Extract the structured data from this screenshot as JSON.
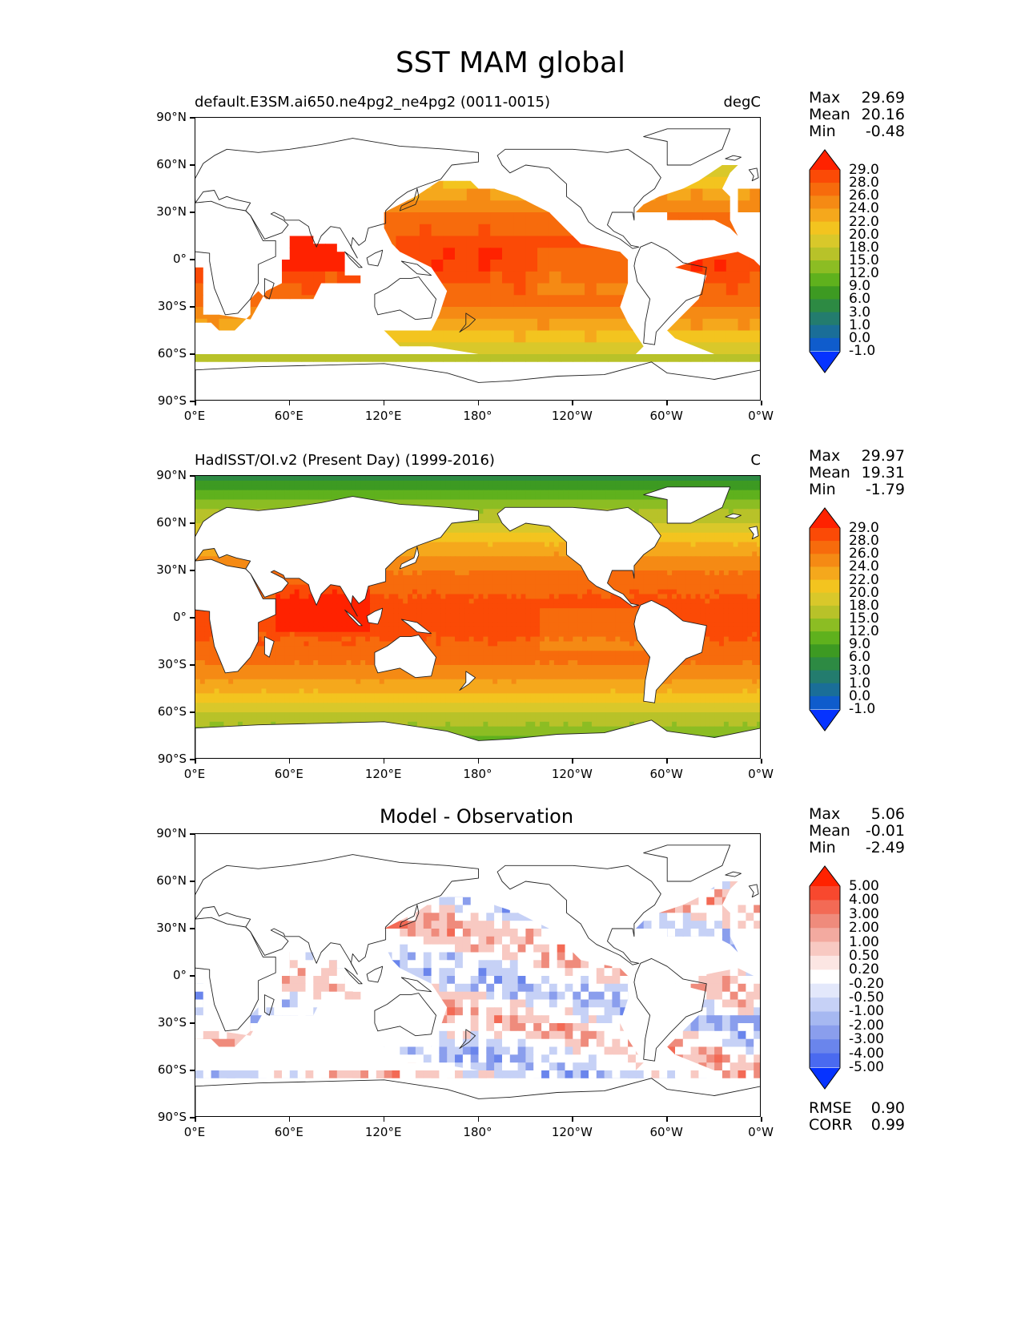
{
  "figure": {
    "title": "SST MAM global"
  },
  "axes": {
    "lat_ticks": [
      "90°N",
      "60°N",
      "30°N",
      "0°",
      "30°S",
      "60°S",
      "90°S"
    ],
    "lon_ticks": [
      "0°E",
      "60°E",
      "120°E",
      "180°",
      "120°W",
      "60°W",
      "0°W"
    ]
  },
  "panels": [
    {
      "id": "model",
      "title_left": "default.E3SM.ai650.ne4pg2_ne4pg2 (0011-0015)",
      "title_right": "degC",
      "title_center": "",
      "stats": [
        {
          "label": "Max",
          "value": "29.69"
        },
        {
          "label": "Mean",
          "value": "20.16"
        },
        {
          "label": "Min",
          "value": "-0.48"
        }
      ],
      "colorbar": {
        "labels": [
          "29.0",
          "28.0",
          "26.0",
          "24.0",
          "22.0",
          "20.0",
          "18.0",
          "15.0",
          "12.0",
          "9.0",
          "6.0",
          "3.0",
          "1.0",
          "0.0",
          "-1.0"
        ],
        "colors": [
          "#ff2200",
          "#fb4a06",
          "#f76b0c",
          "#f58a14",
          "#f5a81c",
          "#f3c41f",
          "#d9c82a",
          "#b8c229",
          "#8cbd23",
          "#5fb11d",
          "#3d9a22",
          "#2d8a43",
          "#237c6e",
          "#1a6e98",
          "#0f5ccc",
          "#0633ff"
        ]
      }
    },
    {
      "id": "observation",
      "title_left": "HadISST/OI.v2 (Present Day) (1999-2016)",
      "title_right": "C",
      "title_center": "",
      "stats": [
        {
          "label": "Max",
          "value": "29.97"
        },
        {
          "label": "Mean",
          "value": "19.31"
        },
        {
          "label": "Min",
          "value": "-1.79"
        }
      ],
      "colorbar": {
        "labels": [
          "29.0",
          "28.0",
          "26.0",
          "24.0",
          "22.0",
          "20.0",
          "18.0",
          "15.0",
          "12.0",
          "9.0",
          "6.0",
          "3.0",
          "1.0",
          "0.0",
          "-1.0"
        ],
        "colors": [
          "#ff2200",
          "#fb4a06",
          "#f76b0c",
          "#f58a14",
          "#f5a81c",
          "#f3c41f",
          "#d9c82a",
          "#b8c229",
          "#8cbd23",
          "#5fb11d",
          "#3d9a22",
          "#2d8a43",
          "#237c6e",
          "#1a6e98",
          "#0f5ccc",
          "#0633ff"
        ]
      }
    },
    {
      "id": "difference",
      "title_left": "",
      "title_right": "",
      "title_center": "Model - Observation",
      "stats": [
        {
          "label": "Max",
          "value": "5.06"
        },
        {
          "label": "Mean",
          "value": "-0.01"
        },
        {
          "label": "Min",
          "value": "-2.49"
        }
      ],
      "extra_stats": [
        {
          "label": "RMSE",
          "value": "0.90"
        },
        {
          "label": "CORR",
          "value": "0.99"
        }
      ],
      "colorbar": {
        "labels": [
          "5.00",
          "4.00",
          "3.00",
          "2.00",
          "1.00",
          "0.50",
          "0.20",
          "-0.20",
          "-0.50",
          "-1.00",
          "-2.00",
          "-3.00",
          "-4.00",
          "-5.00"
        ],
        "colors": [
          "#ff2200",
          "#f8482e",
          "#f36a55",
          "#ef8b7c",
          "#f3aaa0",
          "#f8c9c2",
          "#fce6e3",
          "#ffffff",
          "#e3e8fb",
          "#c6d1f6",
          "#a6b8f1",
          "#8a9eed",
          "#6a85ec",
          "#4a6af0",
          "#0633ff"
        ]
      }
    }
  ]
}
